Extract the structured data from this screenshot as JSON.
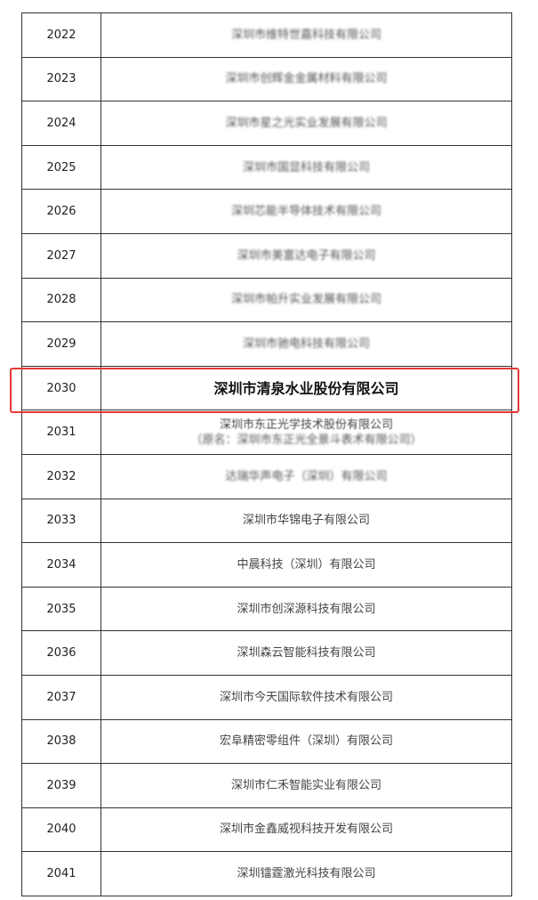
{
  "highlight_color": "#e53935",
  "highlighted_year": "2030",
  "rows": [
    {
      "year": "2022",
      "name": "深圳市维特世嘉科技有限公司"
    },
    {
      "year": "2023",
      "name": "深圳市创辉金金属材料有限公司"
    },
    {
      "year": "2024",
      "name": "深圳市星之光实业发展有限公司"
    },
    {
      "year": "2025",
      "name": "深圳市国显科技有限公司"
    },
    {
      "year": "2026",
      "name": "深圳芯能半导体技术有限公司"
    },
    {
      "year": "2027",
      "name": "深圳市美富达电子有限公司"
    },
    {
      "year": "2028",
      "name": "深圳市帕升实业发展有限公司"
    },
    {
      "year": "2029",
      "name": "深圳市驰电科技有限公司"
    },
    {
      "year": "2030",
      "name": "深圳市清泉水业股份有限公司"
    },
    {
      "year": "2031",
      "name": "深圳市东正光学技术股份有限公司",
      "former_name": "（原名：深圳市东正光全景斗表术有限公司）"
    },
    {
      "year": "2032",
      "name": "达瑞华声电子（深圳）有限公司"
    },
    {
      "year": "2033",
      "name": "深圳市华锦电子有限公司"
    },
    {
      "year": "2034",
      "name": "中晨科技（深圳）有限公司"
    },
    {
      "year": "2035",
      "name": "深圳市创深源科技有限公司"
    },
    {
      "year": "2036",
      "name": "深圳森云智能科技有限公司"
    },
    {
      "year": "2037",
      "name": "深圳市今天国际软件技术有限公司"
    },
    {
      "year": "2038",
      "name": "宏阜精密零组件（深圳）有限公司"
    },
    {
      "year": "2039",
      "name": "深圳市仁禾智能实业有限公司"
    },
    {
      "year": "2040",
      "name": "深圳市金鑫威视科技开发有限公司"
    },
    {
      "year": "2041",
      "name": "深圳镭霆激光科技有限公司"
    }
  ]
}
